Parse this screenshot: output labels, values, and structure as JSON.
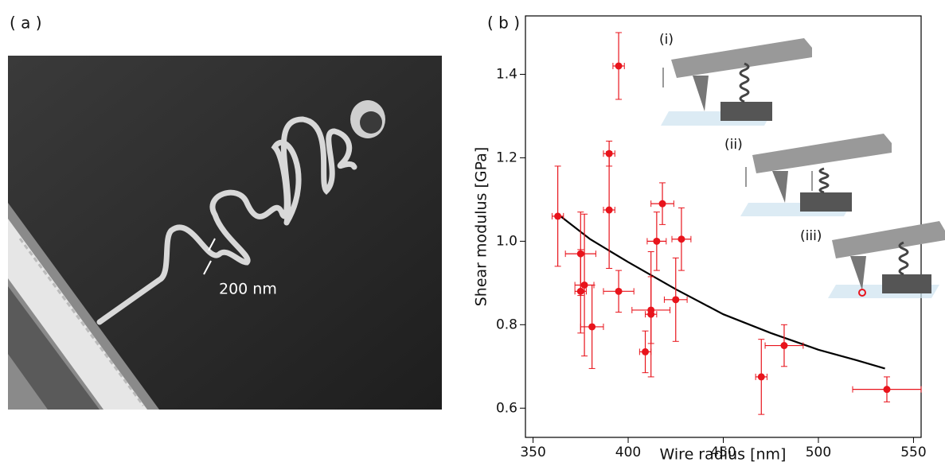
{
  "panel_a": {
    "label": "( a )",
    "scale_label": "200 nm"
  },
  "chart_data": {
    "type": "scatter",
    "panel_label": "( b )",
    "x_label": "Wire radius [nm]",
    "y_label": "Shear modulus [GPa]",
    "xlim": [
      346,
      554
    ],
    "ylim": [
      0.53,
      1.54
    ],
    "xticks": [
      350,
      400,
      450,
      500,
      550
    ],
    "yticks": [
      0.6,
      0.8,
      {
        "value": 1,
        "label": "1.0"
      },
      1.2,
      1.4
    ],
    "points": {
      "color": "#e8141c",
      "x": [
        363,
        375,
        375,
        377,
        381,
        390,
        390,
        395,
        395,
        409,
        412,
        412,
        415,
        418,
        425,
        428,
        470,
        482,
        536
      ],
      "values": [
        1.06,
        0.97,
        0.88,
        0.895,
        0.795,
        1.21,
        1.075,
        1.42,
        0.88,
        0.735,
        0.835,
        0.825,
        1.0,
        1.09,
        0.86,
        1.005,
        0.675,
        0.75,
        0.645
      ],
      "xerr": [
        3,
        8,
        3,
        5,
        6,
        3,
        3,
        3,
        8,
        3,
        10,
        3,
        5,
        6,
        6,
        5,
        3,
        10,
        18
      ],
      "yerr": [
        0.12,
        0.1,
        0.1,
        0.17,
        0.1,
        0.03,
        0.14,
        0.08,
        0.05,
        0.05,
        0.08,
        0.15,
        0.07,
        0.05,
        0.1,
        0.075,
        0.09,
        0.05,
        0.03
      ]
    },
    "fit": {
      "color": "#000000",
      "x": [
        363,
        380,
        400,
        425,
        450,
        475,
        500,
        520,
        535
      ],
      "values": [
        1.065,
        1.005,
        0.95,
        0.885,
        0.825,
        0.78,
        0.74,
        0.715,
        0.695
      ]
    },
    "inset_labels": [
      "(i)",
      "(ii)",
      "(iii)"
    ]
  }
}
